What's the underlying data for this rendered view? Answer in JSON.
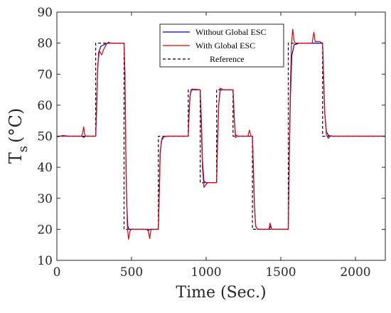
{
  "chart_data": {
    "type": "line",
    "xlabel": "Time (Sec.)",
    "ylabel_main": "T",
    "ylabel_sub": "s",
    "ylabel_unit": "(°C)",
    "xlim": [
      0,
      2200
    ],
    "ylim": [
      10,
      90
    ],
    "xticks": [
      0,
      500,
      1000,
      1500,
      2000
    ],
    "yticks": [
      10,
      20,
      30,
      40,
      50,
      60,
      70,
      80,
      90
    ],
    "grid": false,
    "legend_position": "top-center",
    "series": [
      {
        "name": "Without Global ESC",
        "color": "#0000cc",
        "dash": "solid",
        "points": [
          [
            0,
            49.8
          ],
          [
            40,
            50.2
          ],
          [
            80,
            50
          ],
          [
            170,
            50
          ],
          [
            180,
            49.6
          ],
          [
            190,
            50
          ],
          [
            260,
            50
          ],
          [
            266,
            58
          ],
          [
            272,
            70
          ],
          [
            280,
            77
          ],
          [
            295,
            79
          ],
          [
            320,
            79.6
          ],
          [
            340,
            80
          ],
          [
            450,
            80
          ],
          [
            456,
            70
          ],
          [
            462,
            45
          ],
          [
            468,
            28
          ],
          [
            475,
            21
          ],
          [
            485,
            20
          ],
          [
            600,
            20
          ],
          [
            612,
            19.5
          ],
          [
            622,
            20
          ],
          [
            680,
            20
          ],
          [
            686,
            32
          ],
          [
            692,
            44
          ],
          [
            700,
            48.5
          ],
          [
            715,
            49.8
          ],
          [
            740,
            50
          ],
          [
            880,
            50
          ],
          [
            886,
            58
          ],
          [
            892,
            63
          ],
          [
            902,
            65
          ],
          [
            960,
            65
          ],
          [
            968,
            55
          ],
          [
            975,
            42
          ],
          [
            985,
            35.5
          ],
          [
            1000,
            35
          ],
          [
            1070,
            35
          ],
          [
            1076,
            48
          ],
          [
            1084,
            60
          ],
          [
            1094,
            64.8
          ],
          [
            1110,
            65
          ],
          [
            1180,
            65
          ],
          [
            1188,
            56
          ],
          [
            1196,
            50.5
          ],
          [
            1210,
            50
          ],
          [
            1310,
            50
          ],
          [
            1316,
            40
          ],
          [
            1324,
            27
          ],
          [
            1332,
            21
          ],
          [
            1345,
            20
          ],
          [
            1420,
            20
          ],
          [
            1430,
            21
          ],
          [
            1440,
            20
          ],
          [
            1550,
            20
          ],
          [
            1556,
            40
          ],
          [
            1564,
            62
          ],
          [
            1574,
            76
          ],
          [
            1590,
            79.5
          ],
          [
            1610,
            80
          ],
          [
            1780,
            80
          ],
          [
            1786,
            70
          ],
          [
            1794,
            58
          ],
          [
            1805,
            51.5
          ],
          [
            1820,
            50.2
          ],
          [
            1850,
            50
          ],
          [
            2200,
            50
          ]
        ]
      },
      {
        "name": "With Global ESC",
        "color": "#e8000b",
        "dash": "solid",
        "points": [
          [
            0,
            50
          ],
          [
            165,
            50
          ],
          [
            172,
            51
          ],
          [
            180,
            53
          ],
          [
            186,
            50.5
          ],
          [
            195,
            50
          ],
          [
            260,
            50
          ],
          [
            266,
            60
          ],
          [
            274,
            73
          ],
          [
            285,
            77.5
          ],
          [
            300,
            76.2
          ],
          [
            312,
            77.8
          ],
          [
            330,
            79.5
          ],
          [
            345,
            80.3
          ],
          [
            360,
            80
          ],
          [
            450,
            80
          ],
          [
            456,
            68
          ],
          [
            464,
            38
          ],
          [
            472,
            21
          ],
          [
            480,
            16.8
          ],
          [
            490,
            19.5
          ],
          [
            500,
            20
          ],
          [
            610,
            20
          ],
          [
            616,
            18.5
          ],
          [
            622,
            17
          ],
          [
            630,
            19.8
          ],
          [
            640,
            20
          ],
          [
            680,
            20
          ],
          [
            686,
            32
          ],
          [
            692,
            45
          ],
          [
            705,
            49.5
          ],
          [
            720,
            50
          ],
          [
            880,
            50
          ],
          [
            888,
            60
          ],
          [
            896,
            64.5
          ],
          [
            905,
            65.2
          ],
          [
            960,
            65
          ],
          [
            966,
            55
          ],
          [
            975,
            40
          ],
          [
            985,
            33.5
          ],
          [
            1000,
            34.5
          ],
          [
            1010,
            35
          ],
          [
            1070,
            35
          ],
          [
            1076,
            48
          ],
          [
            1084,
            60
          ],
          [
            1094,
            65.5
          ],
          [
            1115,
            65
          ],
          [
            1180,
            65
          ],
          [
            1188,
            56
          ],
          [
            1196,
            49.5
          ],
          [
            1205,
            50
          ],
          [
            1280,
            50
          ],
          [
            1290,
            52
          ],
          [
            1300,
            50
          ],
          [
            1310,
            50
          ],
          [
            1316,
            40
          ],
          [
            1324,
            27
          ],
          [
            1332,
            21
          ],
          [
            1345,
            20
          ],
          [
            1420,
            20
          ],
          [
            1428,
            22
          ],
          [
            1440,
            20
          ],
          [
            1550,
            20
          ],
          [
            1556,
            42
          ],
          [
            1564,
            66
          ],
          [
            1572,
            80
          ],
          [
            1580,
            84.5
          ],
          [
            1588,
            81
          ],
          [
            1600,
            79.5
          ],
          [
            1620,
            80
          ],
          [
            1710,
            80
          ],
          [
            1716,
            82
          ],
          [
            1722,
            83.5
          ],
          [
            1730,
            80.5
          ],
          [
            1760,
            80.5
          ],
          [
            1780,
            80
          ],
          [
            1786,
            70
          ],
          [
            1794,
            58
          ],
          [
            1805,
            50.5
          ],
          [
            1818,
            49.3
          ],
          [
            1830,
            50
          ],
          [
            1850,
            50
          ],
          [
            2200,
            50
          ]
        ]
      },
      {
        "name": "Reference",
        "color": "#000000",
        "dash": "dashed",
        "points": [
          [
            0,
            50
          ],
          [
            260,
            50
          ],
          [
            260,
            80
          ],
          [
            450,
            80
          ],
          [
            450,
            20
          ],
          [
            680,
            20
          ],
          [
            680,
            50
          ],
          [
            880,
            50
          ],
          [
            880,
            65
          ],
          [
            960,
            65
          ],
          [
            960,
            35
          ],
          [
            1070,
            35
          ],
          [
            1070,
            65
          ],
          [
            1180,
            65
          ],
          [
            1180,
            50
          ],
          [
            1310,
            50
          ],
          [
            1310,
            20
          ],
          [
            1550,
            20
          ],
          [
            1550,
            80
          ],
          [
            1780,
            80
          ],
          [
            1780,
            50
          ],
          [
            2200,
            50
          ]
        ]
      }
    ]
  }
}
